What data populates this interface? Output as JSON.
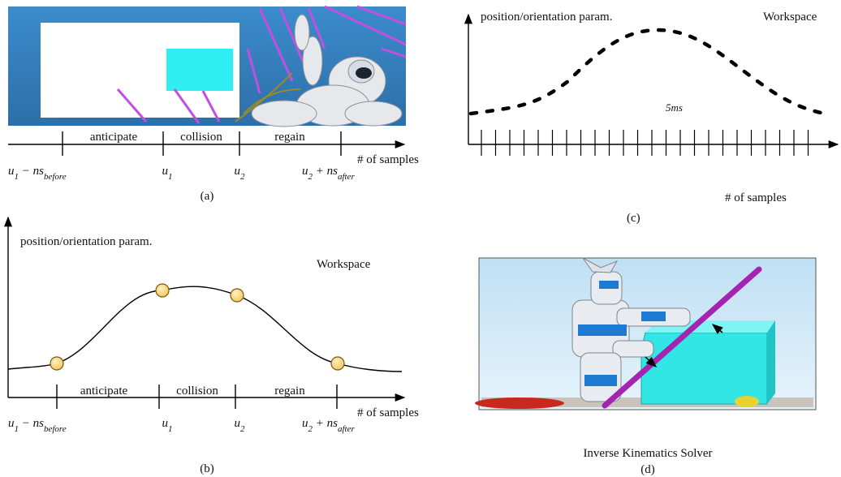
{
  "panel_a": {
    "segments": [
      "anticipate",
      "collision",
      "regain"
    ],
    "axis_label": "# of samples",
    "tick_labels": [
      [
        "u",
        "1",
        " − ns",
        "before"
      ],
      [
        "u",
        "1"
      ],
      [
        "u",
        "2"
      ],
      [
        "u",
        "2",
        " + ns",
        "after"
      ]
    ],
    "caption": "(a)"
  },
  "panel_b": {
    "y_label": "position/orientation param.",
    "space_label": "Workspace",
    "segments": [
      "anticipate",
      "collision",
      "regain"
    ],
    "axis_label": "# of samples",
    "tick_labels": [
      [
        "u",
        "1",
        " − ns",
        "before"
      ],
      [
        "u",
        "1"
      ],
      [
        "u",
        "2"
      ],
      [
        "u",
        "2",
        " + ns",
        "after"
      ]
    ],
    "caption": "(b)"
  },
  "panel_c": {
    "y_label": "position/orientation param.",
    "space_label": "Workspace",
    "interval_label": "5ms",
    "axis_label": "# of samples",
    "caption": "(c)"
  },
  "panel_d": {
    "title": "Inverse Kinematics Solver",
    "caption": "(d)"
  }
}
